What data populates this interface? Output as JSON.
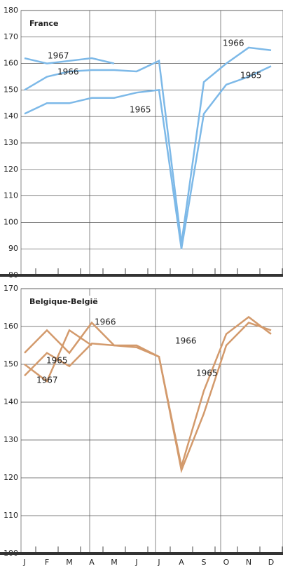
{
  "chart_data": [
    {
      "type": "line",
      "title": "France",
      "ylim": [
        80,
        180
      ],
      "yticks": [
        80,
        90,
        100,
        110,
        120,
        130,
        140,
        150,
        160,
        170,
        180
      ],
      "grid": true,
      "series": [
        {
          "name": "1967",
          "color": "#7db9e8",
          "values": [
            162,
            160,
            161,
            162,
            160,
            null,
            null,
            null,
            null,
            null,
            null,
            null
          ]
        },
        {
          "name": "1966",
          "color": "#7db9e8",
          "values": [
            150,
            155,
            157,
            157.5,
            157.5,
            157,
            161,
            92,
            153,
            160,
            166,
            165
          ]
        },
        {
          "name": "1965",
          "color": "#7db9e8",
          "values": [
            141,
            145,
            145,
            147,
            147,
            149,
            150,
            90,
            141,
            152,
            155,
            159
          ]
        }
      ],
      "annotations": [
        "1967",
        "1966",
        "1965",
        "1966",
        "1965"
      ]
    },
    {
      "type": "line",
      "title": "Belgique-België",
      "ylim": [
        100,
        170
      ],
      "yticks": [
        100,
        110,
        120,
        130,
        140,
        150,
        160,
        170
      ],
      "grid": true,
      "categories": [
        "J",
        "F",
        "M",
        "A",
        "M",
        "J",
        "J",
        "A",
        "S",
        "O",
        "N",
        "D"
      ],
      "series": [
        {
          "name": "1966",
          "color": "#d39a6c",
          "values": [
            153,
            159,
            153,
            161,
            155,
            154.5,
            152,
            123,
            143,
            158,
            162.5,
            158
          ]
        },
        {
          "name": "1965",
          "color": "#d39a6c",
          "values": [
            147,
            153,
            149.5,
            155.5,
            155,
            155,
            152,
            122,
            137,
            155,
            161,
            159
          ]
        },
        {
          "name": "1967",
          "color": "#d39a6c",
          "values": [
            150,
            145.5,
            159,
            155,
            null,
            null,
            null,
            null,
            null,
            null,
            null,
            null
          ]
        }
      ],
      "annotations": [
        "1966",
        "1965",
        "1967",
        "1966",
        "1965"
      ]
    }
  ]
}
